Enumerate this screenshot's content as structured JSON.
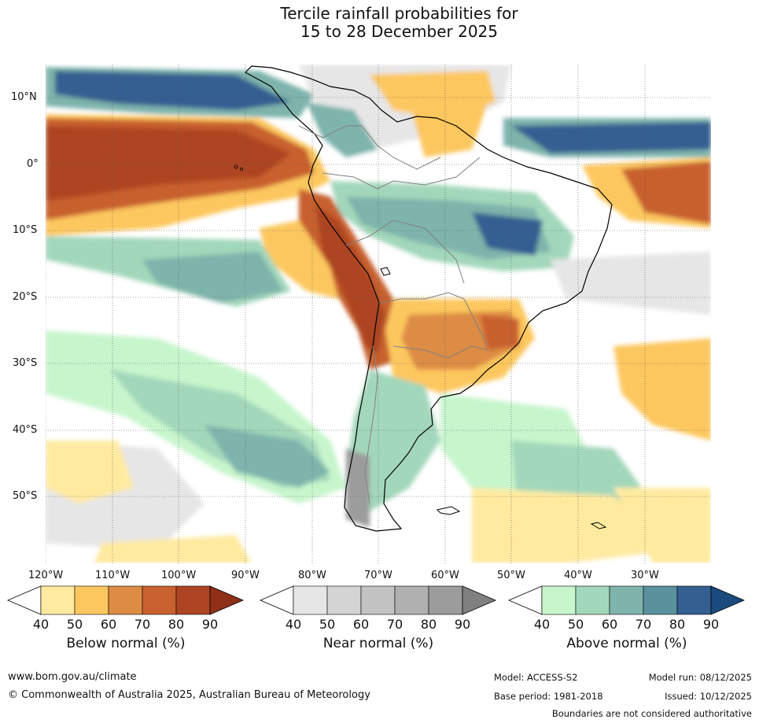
{
  "title": {
    "line1": "Tercile rainfall probabilities for",
    "line2": "15 to 28 December 2025"
  },
  "map": {
    "lat_labels": [
      "10°N",
      "0°",
      "10°S",
      "20°S",
      "30°S",
      "40°S",
      "50°S"
    ],
    "lon_labels": [
      "120°W",
      "110°W",
      "100°W",
      "90°W",
      "80°W",
      "70°W",
      "60°W",
      "50°W",
      "40°W",
      "30°W"
    ]
  },
  "colorbars": [
    {
      "name": "below",
      "label": "Below normal (%)",
      "ticks": [
        "40",
        "50",
        "60",
        "70",
        "80",
        "90"
      ],
      "colors": [
        "#ffeaa0",
        "#fdc75f",
        "#dd8c45",
        "#c8602f",
        "#ad4522",
        "#8f3017"
      ]
    },
    {
      "name": "near",
      "label": "Near normal (%)",
      "ticks": [
        "40",
        "50",
        "60",
        "70",
        "80",
        "90"
      ],
      "colors": [
        "#e6e6e6",
        "#d4d4d4",
        "#c2c2c2",
        "#b0b0b0",
        "#9c9c9c",
        "#808080"
      ]
    },
    {
      "name": "above",
      "label": "Above normal (%)",
      "ticks": [
        "40",
        "50",
        "60",
        "70",
        "80",
        "90"
      ],
      "colors": [
        "#c7f5cc",
        "#a3d7bb",
        "#7eb4ab",
        "#5a919c",
        "#355f91",
        "#1a4a7e"
      ]
    }
  ],
  "footer": {
    "website": "www.bom.gov.au/climate",
    "copyright": "© Commonwealth of Australia 2025, Australian Bureau of Meteorology",
    "model": "Model: ACCESS-S2",
    "base_period": "Base period: 1981-2018",
    "model_run": "Model run: 08/12/2025",
    "issued": "Issued: 10/12/2025",
    "disclaimer": "Boundaries are not considered authoritative"
  }
}
